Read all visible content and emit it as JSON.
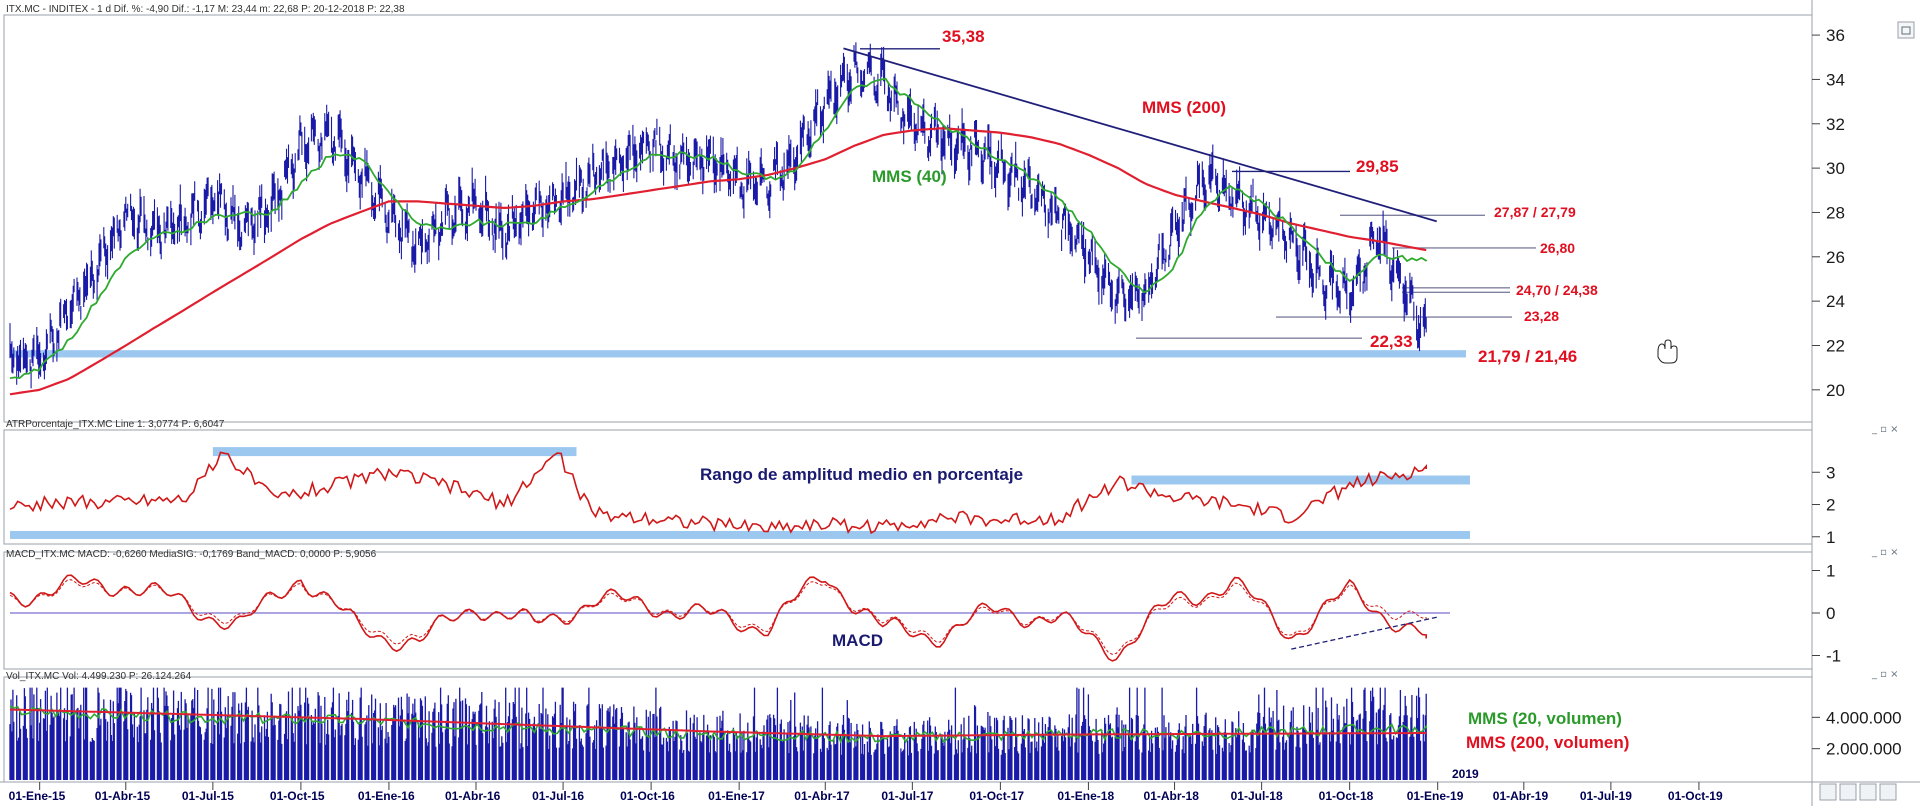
{
  "colors": {
    "price": "#1a1aa8",
    "mms200": "#e02030",
    "mms40": "#2faa2f",
    "resistance": "#20207a",
    "band": "#9cc8f0",
    "indicator": "#d01818",
    "zero": "#7a6fd0",
    "label_red": "#e01020",
    "label_green": "#2a9a2a",
    "label_navy": "#1a1a70"
  },
  "panels": {
    "price": {
      "header": "ITX.MC - INDITEX - 1 d Dif. %: -4,90 Dif.: -1,17 M: 23,44 m: 22,68 P: 20-12-2018 P: 22,38",
      "labels": {
        "high_2017": "35,38",
        "mms200": "MMS (200)",
        "mms40": "MMS (40)",
        "high_2018": "29,85",
        "lvl_a": "27,87 / 27,79",
        "lvl_b": "26,80",
        "lvl_c": "24,70 / 24,38",
        "lvl_d": "23,28",
        "low_2018": "22,33",
        "support": "21,79 / 21,46"
      }
    },
    "atr": {
      "header": "ATRPorcentaje_ITX.MC Line 1: 3,0774 P: 6,6047",
      "label": "Rango de amplitud medio en porcentaje"
    },
    "macd": {
      "header": "MACD_ITX.MC MACD: -0,6260 MediaSIG: -0,1769 Band_MACD: 0,0000 P: 5,9056",
      "label": "MACD"
    },
    "volume": {
      "header": "Vol_ITX.MC Vol: 4.499.230 P: 26.124.264",
      "label_mms20": "MMS (20, volumen)",
      "label_mms200": "MMS (200, volumen)"
    }
  },
  "x_axis": {
    "ticks": [
      "01-Ene-15",
      "01-Abr-15",
      "01-Jul-15",
      "01-Oct-15",
      "01-Ene-16",
      "01-Abr-16",
      "01-Jul-16",
      "01-Oct-16",
      "01-Ene-17",
      "01-Abr-17",
      "01-Jul-17",
      "01-Oct-17",
      "01-Ene-18",
      "01-Abr-18",
      "01-Jul-18",
      "01-Oct-18",
      "01-Ene-19",
      "01-Abr-19",
      "01-Jul-19",
      "01-Oct-19"
    ],
    "year_label": "2019"
  },
  "chart_data": [
    {
      "type": "line",
      "panel": "price",
      "ylim": [
        19,
        36.5
      ],
      "yticks": [
        "20",
        "22",
        "24",
        "26",
        "28",
        "30",
        "32",
        "34",
        "36"
      ],
      "x": [
        "2014-12-01",
        "2015-01-01",
        "2015-02-01",
        "2015-03-01",
        "2015-04-01",
        "2015-05-01",
        "2015-06-01",
        "2015-07-01",
        "2015-08-01",
        "2015-09-01",
        "2015-10-01",
        "2015-11-01",
        "2015-12-01",
        "2016-01-01",
        "2016-02-01",
        "2016-03-01",
        "2016-04-01",
        "2016-05-01",
        "2016-06-01",
        "2016-07-01",
        "2016-08-01",
        "2016-09-01",
        "2016-10-01",
        "2016-11-01",
        "2016-12-01",
        "2017-01-01",
        "2017-02-01",
        "2017-03-01",
        "2017-04-01",
        "2017-05-01",
        "2017-06-01",
        "2017-07-01",
        "2017-08-01",
        "2017-09-01",
        "2017-10-01",
        "2017-11-01",
        "2017-12-01",
        "2018-01-01",
        "2018-02-01",
        "2018-03-01",
        "2018-04-01",
        "2018-05-01",
        "2018-06-01",
        "2018-07-01",
        "2018-08-01",
        "2018-09-01",
        "2018-10-01",
        "2018-11-01",
        "2018-12-20"
      ],
      "series": [
        {
          "name": "ITX.MC",
          "values": [
            21.5,
            21.3,
            23.5,
            25.5,
            27.8,
            27.2,
            27.5,
            28.8,
            27.2,
            28.2,
            31.0,
            31.6,
            29.8,
            27.8,
            26.4,
            27.9,
            28.3,
            27.0,
            28.2,
            28.6,
            29.6,
            30.4,
            31.0,
            30.2,
            30.5,
            29.3,
            29.4,
            30.4,
            33.0,
            34.4,
            33.8,
            32.0,
            31.3,
            30.9,
            30.0,
            29.0,
            27.9,
            26.0,
            24.0,
            24.4,
            27.0,
            29.5,
            28.8,
            27.8,
            26.8,
            25.0,
            24.2,
            27.0,
            22.38
          ]
        },
        {
          "name": "MMS (40)",
          "values": [
            20.4,
            21.0,
            22.2,
            24.0,
            25.9,
            26.9,
            27.2,
            27.8,
            27.9,
            28.0,
            29.3,
            30.6,
            30.5,
            28.9,
            27.5,
            27.2,
            27.6,
            27.4,
            27.6,
            28.2,
            28.9,
            29.8,
            30.5,
            30.6,
            30.5,
            29.9,
            29.5,
            29.9,
            31.7,
            33.6,
            34.0,
            33.0,
            32.0,
            31.2,
            30.4,
            29.6,
            28.6,
            27.2,
            25.4,
            24.3,
            25.6,
            28.2,
            29.2,
            28.4,
            27.4,
            26.0,
            24.9,
            26.1,
            25.8
          ]
        },
        {
          "name": "MMS (200)",
          "values": [
            19.8,
            20.0,
            20.5,
            21.2,
            22.0,
            22.8,
            23.6,
            24.4,
            25.2,
            26.0,
            26.8,
            27.5,
            28.0,
            28.5,
            28.5,
            28.4,
            28.3,
            28.2,
            28.3,
            28.5,
            28.6,
            28.8,
            29.0,
            29.2,
            29.4,
            29.5,
            29.7,
            30.0,
            30.4,
            31.0,
            31.5,
            31.7,
            31.8,
            31.7,
            31.6,
            31.4,
            31.1,
            30.6,
            30.0,
            29.3,
            28.8,
            28.5,
            28.2,
            27.9,
            27.5,
            27.2,
            26.9,
            26.7,
            26.3
          ]
        }
      ]
    },
    {
      "type": "line",
      "panel": "atr",
      "ylim": [
        0.9,
        4
      ],
      "yticks": [
        "1",
        "2",
        "3"
      ],
      "x": [
        "2014-12-01",
        "2015-03-01",
        "2015-06-01",
        "2015-07-15",
        "2015-09-01",
        "2015-11-01",
        "2016-01-01",
        "2016-03-01",
        "2016-05-01",
        "2016-06-25",
        "2016-08-01",
        "2016-10-01",
        "2016-12-01",
        "2017-02-01",
        "2017-04-01",
        "2017-06-01",
        "2017-08-01",
        "2017-10-01",
        "2017-12-01",
        "2018-02-01",
        "2018-04-01",
        "2018-06-01",
        "2018-08-01",
        "2018-10-01",
        "2018-12-20"
      ],
      "series": [
        {
          "name": "ATRPorcentaje_ITX.MC",
          "values": [
            2.0,
            2.1,
            2.2,
            3.6,
            2.2,
            2.6,
            3.0,
            2.6,
            2.0,
            3.6,
            1.7,
            1.6,
            1.4,
            1.3,
            1.4,
            1.3,
            1.6,
            1.5,
            1.6,
            2.7,
            2.2,
            2.0,
            1.6,
            2.6,
            3.1
          ]
        }
      ]
    },
    {
      "type": "line",
      "panel": "macd",
      "ylim": [
        -1.2,
        1.2
      ],
      "yticks": [
        "-1",
        "0",
        "1"
      ],
      "x": [
        "2014-12-01",
        "2015-02-01",
        "2015-04-01",
        "2015-06-01",
        "2015-08-01",
        "2015-10-01",
        "2015-12-01",
        "2016-02-01",
        "2016-04-01",
        "2016-06-01",
        "2016-08-01",
        "2016-10-01",
        "2016-12-01",
        "2017-02-01",
        "2017-04-01",
        "2017-06-01",
        "2017-08-01",
        "2017-10-01",
        "2017-12-01",
        "2018-02-01",
        "2018-04-01",
        "2018-06-01",
        "2018-08-01",
        "2018-10-01",
        "2018-12-20"
      ],
      "series": [
        {
          "name": "MACD",
          "values": [
            0.4,
            0.6,
            0.7,
            0.2,
            -0.3,
            0.9,
            -0.4,
            -0.7,
            0.2,
            -0.3,
            0.3,
            0.2,
            -0.1,
            -0.3,
            0.9,
            -0.4,
            -0.5,
            0.1,
            -0.2,
            -0.9,
            0.3,
            0.7,
            -0.5,
            0.5,
            -0.6
          ]
        },
        {
          "name": "MediaSIG",
          "values": [
            0.35,
            0.55,
            0.65,
            0.25,
            -0.2,
            0.8,
            -0.3,
            -0.6,
            0.15,
            -0.25,
            0.25,
            0.2,
            -0.05,
            -0.25,
            0.8,
            -0.3,
            -0.45,
            0.05,
            -0.15,
            -0.8,
            0.2,
            0.6,
            -0.45,
            0.45,
            -0.18
          ]
        }
      ]
    },
    {
      "type": "bar",
      "panel": "volume",
      "ylim": [
        0,
        6000000
      ],
      "yticks": [
        "2.000.000",
        "4.000.000"
      ],
      "x": [
        "2014-12-01",
        "2015-06-01",
        "2015-12-01",
        "2016-06-01",
        "2016-12-01",
        "2017-06-01",
        "2017-12-01",
        "2018-06-01",
        "2018-12-20"
      ],
      "series": [
        {
          "name": "Vol_ITX.MC",
          "values": [
            4500000,
            4200000,
            3900000,
            3600000,
            3000000,
            2800000,
            2900000,
            3000000,
            4499230
          ]
        },
        {
          "name": "MMS (20, volumen)",
          "values": [
            4400000,
            4000000,
            3800000,
            3300000,
            2900000,
            2700000,
            2900000,
            3000000,
            3300000
          ]
        },
        {
          "name": "MMS (200, volumen)",
          "values": [
            4500000,
            4200000,
            3900000,
            3500000,
            3100000,
            2800000,
            2900000,
            2950000,
            3000000
          ]
        }
      ]
    }
  ]
}
